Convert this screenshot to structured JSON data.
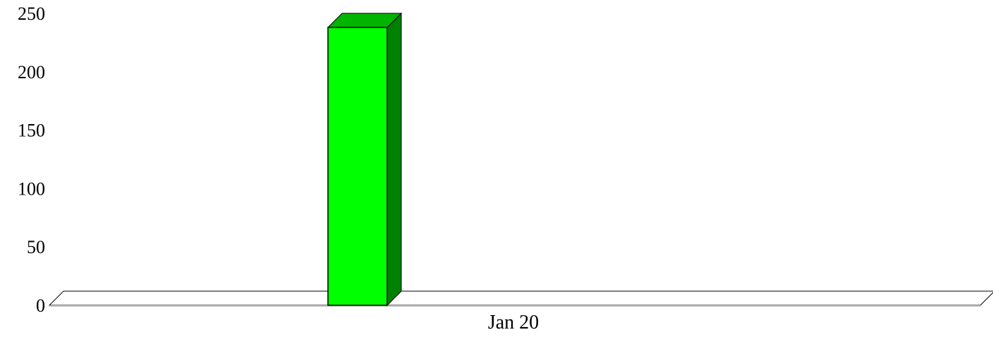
{
  "chart_data": {
    "type": "bar",
    "categories": [
      "Jan 20"
    ],
    "series": [
      {
        "values": [
          238
        ]
      }
    ],
    "y_ticks": [
      "0",
      "50",
      "100",
      "150",
      "200",
      "250"
    ],
    "ylim": [
      0,
      250
    ],
    "title": "",
    "xlabel": "",
    "ylabel": "",
    "grid": false,
    "style": "3d",
    "colors": {
      "bar_front": "#00ff00",
      "bar_side": "#008000",
      "bar_top": "#00b400",
      "floor_fill": "#ffffff",
      "outline": "#000000",
      "floor_line": "#c0c0c0"
    }
  }
}
